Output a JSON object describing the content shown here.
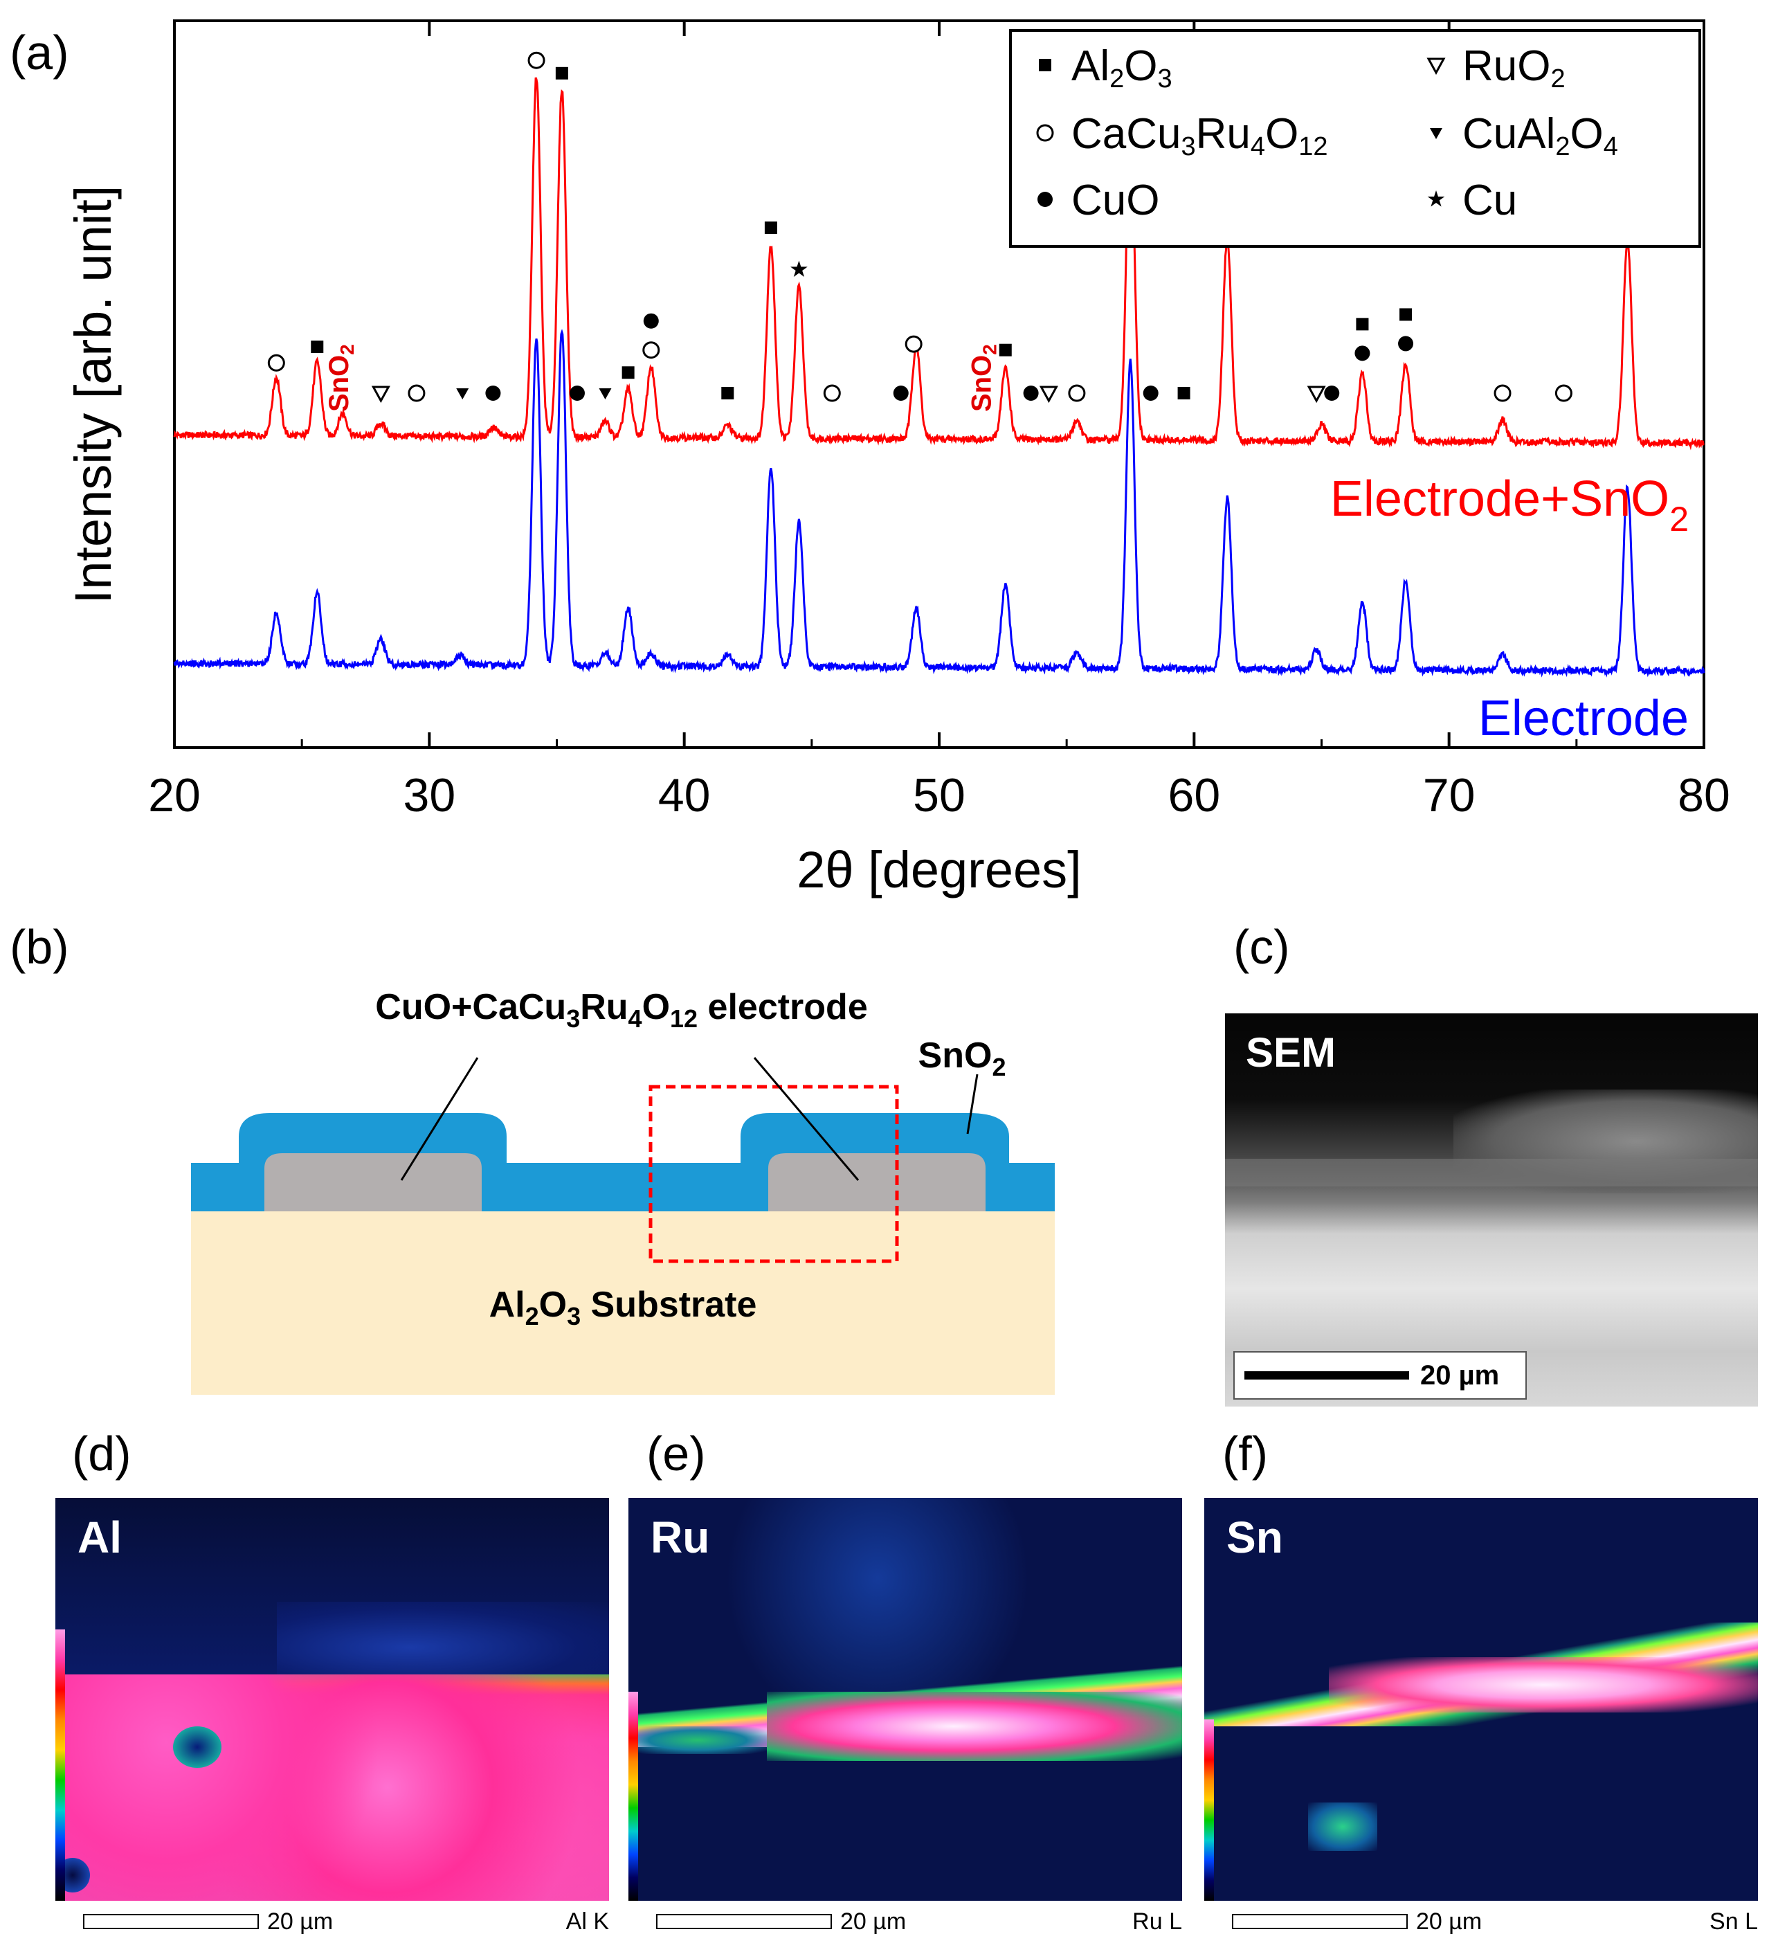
{
  "chart_data": {
    "type": "line",
    "panel": "(a)",
    "xlabel": "2θ [degrees]",
    "ylabel": "Intensity [arb. unit]",
    "xlim": [
      20,
      80
    ],
    "xticks": [
      20,
      30,
      40,
      50,
      60,
      70,
      80
    ],
    "yticks_shown": false,
    "grid": false,
    "legend_position": "top-right",
    "series": [
      {
        "name": "Electrode+SnO2",
        "color": "#ff0000",
        "baseline": 1.0,
        "peaks": [
          [
            24.0,
            0.18
          ],
          [
            25.6,
            0.23
          ],
          [
            26.6,
            0.07
          ],
          [
            28.1,
            0.04
          ],
          [
            32.5,
            0.03
          ],
          [
            34.2,
            1.12
          ],
          [
            35.2,
            1.08
          ],
          [
            36.9,
            0.05
          ],
          [
            37.8,
            0.15
          ],
          [
            38.7,
            0.22
          ],
          [
            41.7,
            0.04
          ],
          [
            43.4,
            0.6
          ],
          [
            44.5,
            0.47
          ],
          [
            49.1,
            0.29
          ],
          [
            52.6,
            0.22
          ],
          [
            55.4,
            0.06
          ],
          [
            57.5,
            1.0
          ],
          [
            61.3,
            0.63
          ],
          [
            65.0,
            0.05
          ],
          [
            66.6,
            0.21
          ],
          [
            68.3,
            0.24
          ],
          [
            72.1,
            0.07
          ],
          [
            77.0,
            0.63
          ]
        ]
      },
      {
        "name": "Electrode",
        "color": "#0000ff",
        "baseline": 0.0,
        "peaks": [
          [
            24.0,
            0.16
          ],
          [
            25.6,
            0.22
          ],
          [
            28.1,
            0.08
          ],
          [
            31.2,
            0.03
          ],
          [
            34.2,
            1.02
          ],
          [
            35.2,
            1.04
          ],
          [
            36.9,
            0.04
          ],
          [
            37.8,
            0.18
          ],
          [
            38.7,
            0.04
          ],
          [
            41.7,
            0.04
          ],
          [
            43.4,
            0.62
          ],
          [
            44.5,
            0.45
          ],
          [
            49.1,
            0.18
          ],
          [
            52.6,
            0.26
          ],
          [
            55.4,
            0.05
          ],
          [
            57.5,
            0.96
          ],
          [
            61.3,
            0.53
          ],
          [
            64.8,
            0.06
          ],
          [
            66.6,
            0.21
          ],
          [
            68.3,
            0.28
          ],
          [
            72.1,
            0.05
          ],
          [
            77.0,
            0.57
          ]
        ]
      }
    ],
    "legend": [
      {
        "marker": "filled-square",
        "label_html": "Al<tspan dy='10' font-size='38'>2</tspan><tspan dy='-10'>O</tspan><tspan dy='10' font-size='38'>3</tspan>"
      },
      {
        "marker": "open-down-triangle",
        "label_html": "RuO<tspan dy='10' font-size='38'>2</tspan>"
      },
      {
        "marker": "open-circle",
        "label_html": "CaCu<tspan dy='10' font-size='38'>3</tspan><tspan dy='-10'>Ru</tspan><tspan dy='10' font-size='38'>4</tspan><tspan dy='-10'>O</tspan><tspan dy='10' font-size='38'>12</tspan>"
      },
      {
        "marker": "filled-down-triangle",
        "label_html": "CuAl<tspan dy='10' font-size='38'>2</tspan><tspan dy='-10'>O</tspan><tspan dy='10' font-size='38'>4</tspan>"
      },
      {
        "marker": "filled-circle",
        "label_html": "CuO"
      },
      {
        "marker": "star",
        "label_html": "Cu"
      }
    ],
    "legend_text": [
      "Al2O3",
      "RuO2",
      "CaCu3Ru4O12",
      "CuAl2O4",
      "CuO",
      "Cu"
    ],
    "peak_markers": [
      {
        "x": 24.0,
        "symbols": [
          "open-circle"
        ]
      },
      {
        "x": 25.6,
        "symbols": [
          "filled-square"
        ]
      },
      {
        "x": 28.1,
        "symbols": [
          "open-down-triangle"
        ]
      },
      {
        "x": 29.5,
        "symbols": [
          "open-circle"
        ]
      },
      {
        "x": 31.3,
        "symbols": [
          "filled-down-triangle"
        ]
      },
      {
        "x": 32.5,
        "symbols": [
          "filled-circle"
        ]
      },
      {
        "x": 34.2,
        "symbols": [
          "open-circle"
        ]
      },
      {
        "x": 35.2,
        "symbols": [
          "filled-square"
        ]
      },
      {
        "x": 35.8,
        "symbols": [
          "filled-circle"
        ]
      },
      {
        "x": 36.9,
        "symbols": [
          "filled-down-triangle"
        ]
      },
      {
        "x": 37.8,
        "symbols": [
          "filled-square"
        ]
      },
      {
        "x": 38.7,
        "symbols": [
          "open-circle",
          "filled-circle"
        ]
      },
      {
        "x": 41.7,
        "symbols": [
          "filled-square"
        ]
      },
      {
        "x": 43.4,
        "symbols": [
          "filled-square"
        ]
      },
      {
        "x": 44.5,
        "symbols": [
          "star"
        ]
      },
      {
        "x": 45.8,
        "symbols": [
          "open-circle"
        ]
      },
      {
        "x": 48.5,
        "symbols": [
          "filled-circle"
        ]
      },
      {
        "x": 49.0,
        "symbols": [
          "open-circle"
        ]
      },
      {
        "x": 52.6,
        "symbols": [
          "filled-square"
        ]
      },
      {
        "x": 53.6,
        "symbols": [
          "filled-circle"
        ]
      },
      {
        "x": 54.3,
        "symbols": [
          "open-down-triangle"
        ]
      },
      {
        "x": 55.4,
        "symbols": [
          "open-circle"
        ]
      },
      {
        "x": 57.5,
        "symbols": [
          "filled-square"
        ]
      },
      {
        "x": 58.3,
        "symbols": [
          "filled-circle"
        ]
      },
      {
        "x": 59.6,
        "symbols": [
          "filled-square"
        ]
      },
      {
        "x": 61.3,
        "symbols": [
          "open-circle"
        ]
      },
      {
        "x": 64.8,
        "symbols": [
          "open-down-triangle"
        ]
      },
      {
        "x": 65.4,
        "symbols": [
          "filled-circle"
        ]
      },
      {
        "x": 66.6,
        "symbols": [
          "filled-circle",
          "filled-square"
        ]
      },
      {
        "x": 68.3,
        "symbols": [
          "filled-circle",
          "filled-square"
        ]
      },
      {
        "x": 72.1,
        "symbols": [
          "open-circle"
        ]
      },
      {
        "x": 74.5,
        "symbols": [
          "open-circle"
        ]
      },
      {
        "x": 77.0,
        "symbols": [
          "filled-square"
        ]
      }
    ],
    "sno2_markers": [
      {
        "x": 26.6,
        "text": "SnO2"
      },
      {
        "x": 51.8,
        "text": "SnO2"
      }
    ],
    "series_labels": [
      {
        "text": "Electrode+SnO2",
        "color": "#ff0000"
      },
      {
        "text": "Electrode",
        "color": "#0000ff"
      }
    ]
  },
  "panels": {
    "a": "(a)",
    "b": "(b)",
    "c": "(c)",
    "d": "(d)",
    "e": "(e)",
    "f": "(f)"
  },
  "schematic": {
    "electrode_label": "CuO+CaCu3Ru4O12 electrode",
    "sno2_label": "SnO2",
    "substrate_label": "Al2O3 Substrate",
    "colors": {
      "sno2": "#1c9ad6",
      "electrode": "#b3afaf",
      "substrate": "#fdedc9",
      "box": "#ff0000"
    }
  },
  "sem": {
    "label": "SEM",
    "scale_text": "20 µm"
  },
  "maps": [
    {
      "label": "Al",
      "scale_text": "20 µm",
      "line": "Al K"
    },
    {
      "label": "Ru",
      "scale_text": "20 µm",
      "line": "Ru L"
    },
    {
      "label": "Sn",
      "scale_text": "20 µm",
      "line": "Sn L"
    }
  ]
}
